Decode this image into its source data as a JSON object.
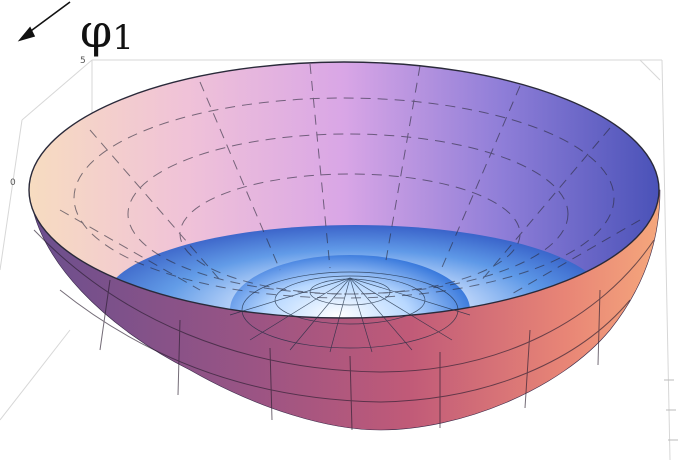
{
  "axis_label": {
    "symbol": "φ",
    "subscript": "1"
  },
  "ticks": {
    "top": "5",
    "left": "0"
  },
  "surface": {
    "description_colors": {
      "rim_left": "#f5d7b4",
      "rim_mid": "#c9a0e8",
      "rim_right": "#4a52b8",
      "hump_center": "#ffffff",
      "hump_edge": "#3d7fe0",
      "outer_left": "#6a4f8e",
      "outer_mid": "#c05a78",
      "outer_right": "#f09a78"
    }
  }
}
